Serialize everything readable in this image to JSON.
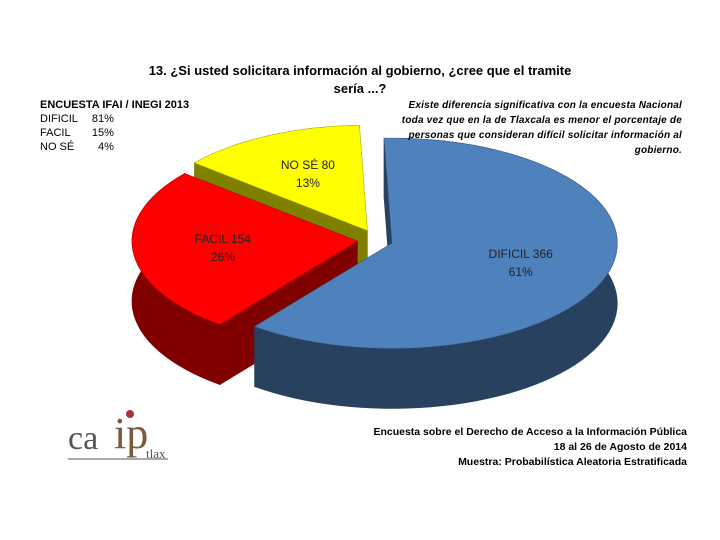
{
  "chart_data": {
    "type": "pie",
    "title": "13. ¿Si usted solicitara información al gobierno, ¿cree que el tramite sería ...?",
    "categories": [
      "DIFICIL",
      "FACIL",
      "NO SÉ"
    ],
    "values": [
      366,
      154,
      80
    ],
    "percent_values": [
      61,
      26,
      13
    ],
    "percent_labels": [
      "61%",
      "26%",
      "13%"
    ],
    "colors": [
      "#4f81bd",
      "#ff0000",
      "#ffff00"
    ],
    "annotation": "Existe diferencia significativa con la encuesta Nacional toda vez que en la de Tlaxcala es menor el porcentaje de personas que consideran difícil solicitar información al gobierno."
  },
  "comparison": {
    "title": "ENCUESTA IFAI / INEGI 2013",
    "rows": [
      [
        "DIFICIL",
        "81%"
      ],
      [
        "FACIL",
        "15%"
      ],
      [
        "NO SÉ",
        "4%"
      ]
    ]
  },
  "footer": [
    "Encuesta sobre el Derecho de Acceso a la Información Pública",
    "18 al 26 de Agosto de 2014",
    "Muestra: Probabilística Aleatoria Estratificada"
  ],
  "logo": {
    "ca": "ca",
    "ip": "ip",
    "tlax": "tlax"
  }
}
